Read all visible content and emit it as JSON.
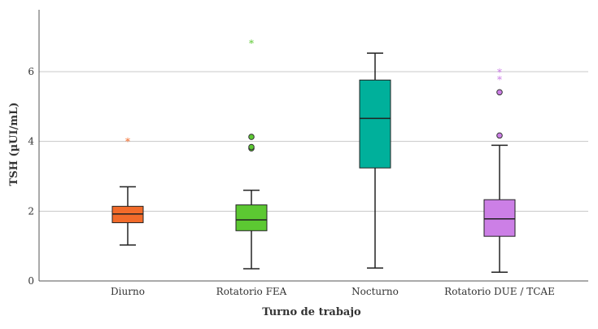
{
  "chart_data": {
    "type": "box",
    "title": "",
    "xlabel": "Turno de trabajo",
    "ylabel": "TSH (µUI/mL)",
    "ylim": [
      0,
      7.8
    ],
    "yticks": [
      0,
      2,
      4,
      6
    ],
    "grid": true,
    "categories": [
      "Diurno",
      "Rotatorio FEA",
      "Nocturno",
      "Rotatorio DUE / TCAE"
    ],
    "boxes": [
      {
        "category": "Diurno",
        "color": "#f26b2a",
        "whisker_low": 1.03,
        "q1": 1.67,
        "median": 1.92,
        "q3": 2.14,
        "whisker_high": 2.7,
        "outliers": [],
        "extremes": [
          4.02
        ]
      },
      {
        "category": "Rotatorio FEA",
        "color": "#5cc832",
        "whisker_low": 0.35,
        "q1": 1.44,
        "median": 1.75,
        "q3": 2.18,
        "whisker_high": 2.6,
        "outliers": [
          3.8,
          3.84,
          4.13
        ],
        "extremes": [
          6.83
        ]
      },
      {
        "category": "Nocturno",
        "color": "#00b09b",
        "whisker_low": 0.37,
        "q1": 3.24,
        "median": 4.66,
        "q3": 5.76,
        "whisker_high": 6.53,
        "outliers": [],
        "extremes": []
      },
      {
        "category": "Rotatorio DUE / TCAE",
        "color": "#cc7fe6",
        "whisker_low": 0.25,
        "q1": 1.28,
        "median": 1.78,
        "q3": 2.33,
        "whisker_high": 3.89,
        "outliers": [
          4.17,
          5.41
        ],
        "extremes": [
          5.79,
          6.0
        ]
      }
    ]
  }
}
